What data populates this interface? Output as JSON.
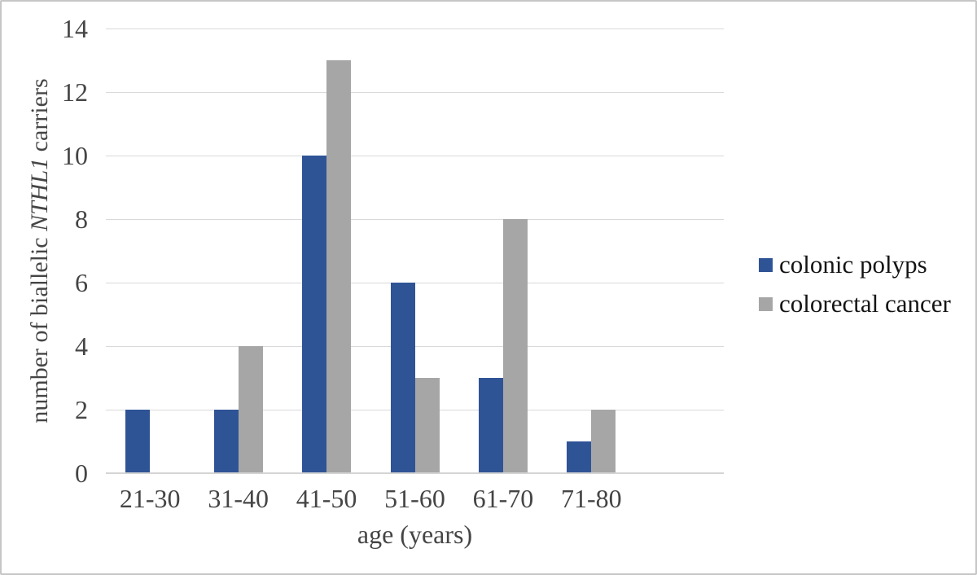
{
  "chart_data": {
    "type": "bar",
    "title": "",
    "categories": [
      "21-30",
      "31-40",
      "41-50",
      "51-60",
      "61-70",
      "71-80"
    ],
    "series": [
      {
        "name": "colonic polyps",
        "color": "#2F5496",
        "values": [
          2,
          2,
          10,
          6,
          3,
          1
        ]
      },
      {
        "name": "colorectal cancer",
        "color": "#A6A6A6",
        "values": [
          0,
          4,
          13,
          3,
          8,
          2
        ]
      }
    ],
    "xlabel": "age (years)",
    "ylabel": "number of biallelic NTHL1 carriers",
    "ylabel_parts": {
      "prefix": "number of biallelic ",
      "gene": "NTHL1",
      "suffix": " carriers"
    },
    "ylim": [
      0,
      14
    ],
    "yticks": [
      0,
      2,
      4,
      6,
      8,
      10,
      12,
      14
    ],
    "grid": true,
    "legend_position": "right",
    "empty_trailing_slots": 1,
    "colors": {
      "gridline": "#d9d9d9",
      "axis_line": "#d4d4d4",
      "tick_text": "#454545",
      "legend_text": "#141414",
      "figure_border": "#c6c6c6"
    }
  }
}
